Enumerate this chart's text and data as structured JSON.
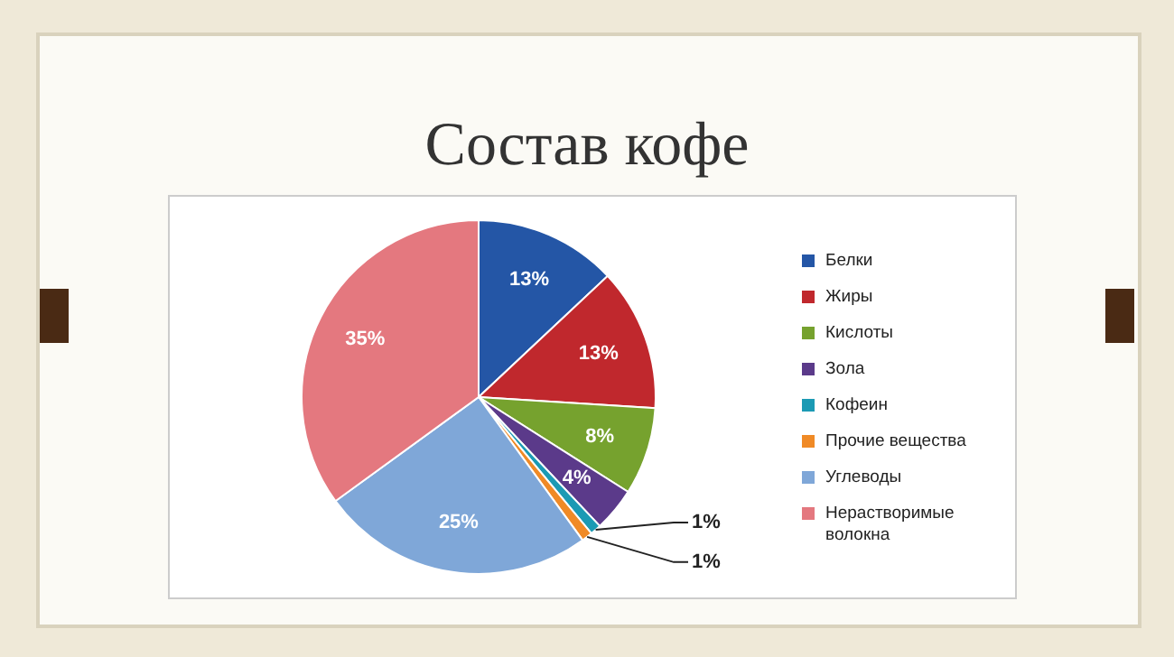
{
  "chart_data": {
    "type": "pie",
    "title": "Состав кофе",
    "categories": [
      "Белки",
      "Жиры",
      "Кислоты",
      "Зола",
      "Кофеин",
      "Прочие вещества",
      "Углеводы",
      "Нерастворимые волокна"
    ],
    "values": [
      13,
      13,
      8,
      4,
      1,
      1,
      25,
      35
    ],
    "value_labels": [
      "13%",
      "13%",
      "8%",
      "4%",
      "1%",
      "1%",
      "25%",
      "35%"
    ],
    "colors": [
      "#2456a6",
      "#c0282d",
      "#76a22e",
      "#5b3a8a",
      "#1b9ab4",
      "#f08a26",
      "#7fa7d8",
      "#e4787f"
    ],
    "legend": "right"
  }
}
